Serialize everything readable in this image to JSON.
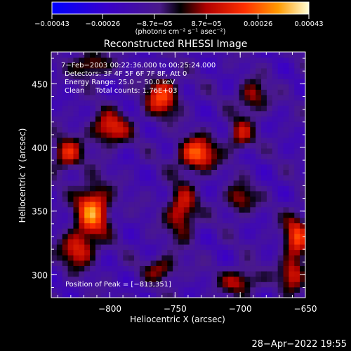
{
  "chart_data": {
    "type": "heatmap",
    "title": "Reconstructed RHESSI Image",
    "xlabel": "Heliocentric X (arcsec)",
    "ylabel": "Heliocentric Y (arcsec)",
    "xlim": [
      -845,
      -650
    ],
    "ylim": [
      282,
      475
    ],
    "xticks": [
      -800,
      -750,
      -700,
      -650
    ],
    "xtick_labels": [
      "−800",
      "−750",
      "−700",
      "−650"
    ],
    "yticks": [
      300,
      350,
      400,
      450
    ],
    "ytick_labels": [
      "300",
      "350",
      "400",
      "450"
    ],
    "colorbar": {
      "range": [
        -0.00043,
        0.00043
      ],
      "ticks": [
        -0.00043,
        -0.00026,
        -8.7e-05,
        8.7e-05,
        0.00026,
        0.00043
      ],
      "tick_labels": [
        "−0.00043",
        "−0.00026",
        "−8.7e−05",
        "8.7e−05",
        "0.00026",
        "0.00043"
      ],
      "units": "(photons cm⁻² s⁻¹ asec⁻²)"
    },
    "annotations": [
      "7−Feb−2003 00:22:36.000 to 00:25:24.000",
      "Detectors: 3F 4F 5F 6F 7F 8F, Att 0",
      "Energy Range: 25.0 − 50.0 keV",
      "Clean     Total counts: 1.76E+03"
    ],
    "peak_label": "Position of Peak = [−813,351]",
    "peak": [
      -813,
      351
    ],
    "sources": [
      {
        "x": -813,
        "y": 351,
        "value": 0.00043,
        "sx": 9,
        "sy": 14
      },
      {
        "x": -733,
        "y": 395,
        "value": 0.0004,
        "sx": 10,
        "sy": 9
      },
      {
        "x": -745,
        "y": 350,
        "value": 0.0003,
        "sx": 8,
        "sy": 14
      },
      {
        "x": -800,
        "y": 415,
        "value": 0.00032,
        "sx": 10,
        "sy": 9
      },
      {
        "x": -760,
        "y": 440,
        "value": 0.00034,
        "sx": 9,
        "sy": 11
      },
      {
        "x": -833,
        "y": 395,
        "value": 0.0003,
        "sx": 8,
        "sy": 9
      },
      {
        "x": -825,
        "y": 320,
        "value": 0.0003,
        "sx": 9,
        "sy": 10
      },
      {
        "x": -700,
        "y": 410,
        "value": 0.00024,
        "sx": 7,
        "sy": 9
      },
      {
        "x": -690,
        "y": 440,
        "value": 0.00024,
        "sx": 8,
        "sy": 9
      },
      {
        "x": -657,
        "y": 330,
        "value": 0.00032,
        "sx": 7,
        "sy": 13
      },
      {
        "x": -660,
        "y": 300,
        "value": 0.00028,
        "sx": 7,
        "sy": 9
      },
      {
        "x": -700,
        "y": 295,
        "value": 0.00026,
        "sx": 10,
        "sy": 7
      },
      {
        "x": -760,
        "y": 305,
        "value": 0.00022,
        "sx": 9,
        "sy": 7
      },
      {
        "x": -815,
        "y": 465,
        "value": 0.00026,
        "sx": 9,
        "sy": 7
      },
      {
        "x": -700,
        "y": 360,
        "value": 0.00024,
        "sx": 8,
        "sy": 8
      }
    ]
  },
  "footer": {
    "timestamp": "28−Apr−2022 19:55"
  }
}
